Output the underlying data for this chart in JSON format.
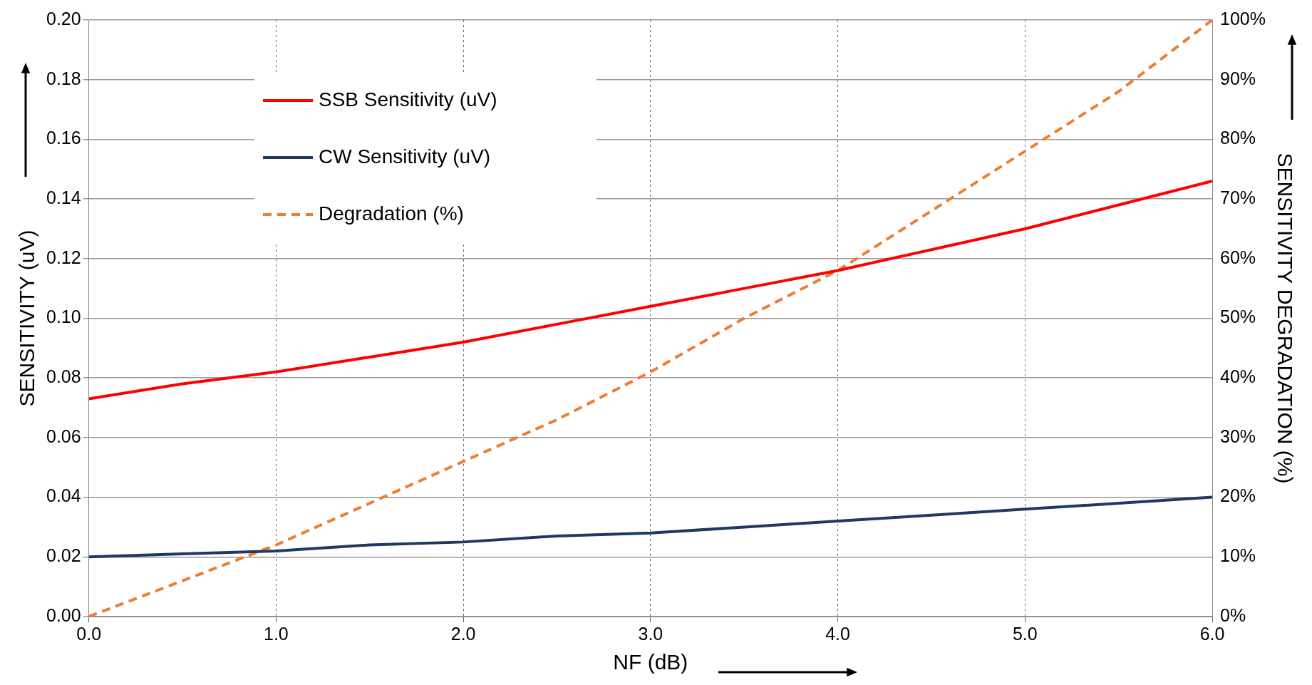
{
  "chart_data": {
    "type": "line",
    "xlabel": "NF (dB)",
    "ylabel": "SENSITIVITY (uV)",
    "y2label": "SENSITIVITY DEGRADATION (%)",
    "x": [
      0,
      0.5,
      1,
      1.5,
      2,
      2.5,
      3,
      3.5,
      4,
      4.5,
      5,
      5.5,
      6
    ],
    "series": [
      {
        "name": "SSB Sensitivity (uV)",
        "color": "#ff0000",
        "line_style": "solid",
        "values": [
          0.073,
          0.078,
          0.082,
          0.087,
          0.092,
          0.098,
          0.104,
          0.11,
          0.116,
          0.123,
          0.13,
          0.138,
          0.146
        ]
      },
      {
        "name": "CW Sensitivity (uV)",
        "color": "#1f3864",
        "line_style": "solid",
        "values": [
          0.02,
          0.021,
          0.022,
          0.024,
          0.025,
          0.027,
          0.028,
          0.03,
          0.032,
          0.034,
          0.036,
          0.038,
          0.04
        ]
      },
      {
        "name": "Degradation (%)",
        "color": "#ed7d31",
        "line_style": "dashed",
        "axis": "y2",
        "values": [
          0,
          6,
          12,
          19,
          26,
          33,
          41,
          50,
          58,
          68,
          78,
          88,
          100
        ]
      }
    ],
    "xlim": [
      0,
      6
    ],
    "xticks": [
      {
        "value": 0,
        "label": "0.0"
      },
      {
        "value": 1,
        "label": "1.0"
      },
      {
        "value": 2,
        "label": "2.0"
      },
      {
        "value": 3,
        "label": "3.0"
      },
      {
        "value": 4,
        "label": "4.0"
      },
      {
        "value": 5,
        "label": "5.0"
      },
      {
        "value": 6,
        "label": "6.0"
      }
    ],
    "ylim": [
      0,
      0.2
    ],
    "yticks": [
      {
        "value": 0,
        "label": "0.00"
      },
      {
        "value": 0.02,
        "label": "0.02"
      },
      {
        "value": 0.04,
        "label": "0.04"
      },
      {
        "value": 0.06,
        "label": "0.06"
      },
      {
        "value": 0.08,
        "label": "0.08"
      },
      {
        "value": 0.1,
        "label": "0.10"
      },
      {
        "value": 0.12,
        "label": "0.12"
      },
      {
        "value": 0.14,
        "label": "0.14"
      },
      {
        "value": 0.16,
        "label": "0.16"
      },
      {
        "value": 0.18,
        "label": "0.18"
      },
      {
        "value": 0.2,
        "label": "0.20"
      }
    ],
    "y2lim": [
      0,
      100
    ],
    "y2ticks": [
      {
        "value": 0,
        "label": "0%"
      },
      {
        "value": 10,
        "label": "10%"
      },
      {
        "value": 20,
        "label": "20%"
      },
      {
        "value": 30,
        "label": "30%"
      },
      {
        "value": 40,
        "label": "40%"
      },
      {
        "value": 50,
        "label": "50%"
      },
      {
        "value": 60,
        "label": "60%"
      },
      {
        "value": 70,
        "label": "70%"
      },
      {
        "value": 80,
        "label": "80%"
      },
      {
        "value": 90,
        "label": "90%"
      },
      {
        "value": 100,
        "label": "100%"
      }
    ],
    "grid": true,
    "legend": "top left",
    "marker": "none"
  }
}
